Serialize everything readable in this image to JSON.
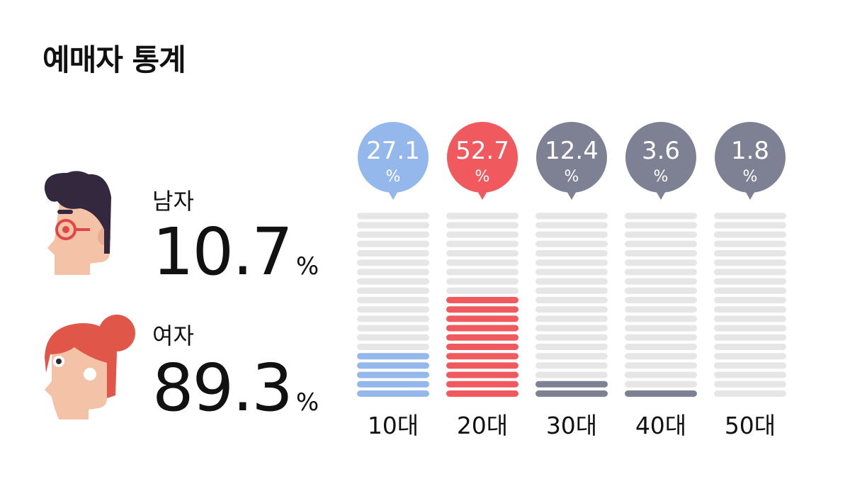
{
  "title": "예매자 통계",
  "gender": {
    "male": {
      "label": "남자",
      "value": "10.7",
      "unit": "%",
      "icon": "male-avatar-icon"
    },
    "female": {
      "label": "여자",
      "value": "89.3",
      "unit": "%",
      "icon": "female-avatar-icon"
    }
  },
  "chart_data": {
    "type": "bar",
    "categories": [
      "10대",
      "20대",
      "30대",
      "40대",
      "50대"
    ],
    "values": [
      27.1,
      52.7,
      12.4,
      3.6,
      1.8
    ],
    "value_labels": [
      "27.1",
      "52.7",
      "12.4",
      "3.6",
      "1.8"
    ],
    "unit": "%",
    "filled_segments": [
      5,
      11,
      2,
      1,
      0
    ],
    "total_segments": 20,
    "colors": [
      "#94b8ec",
      "#f05a5e",
      "#7e8193",
      "#7e8193",
      "#7e8193"
    ],
    "empty_color": "#e6e6e6",
    "title": "",
    "xlabel": "",
    "ylabel": ""
  }
}
